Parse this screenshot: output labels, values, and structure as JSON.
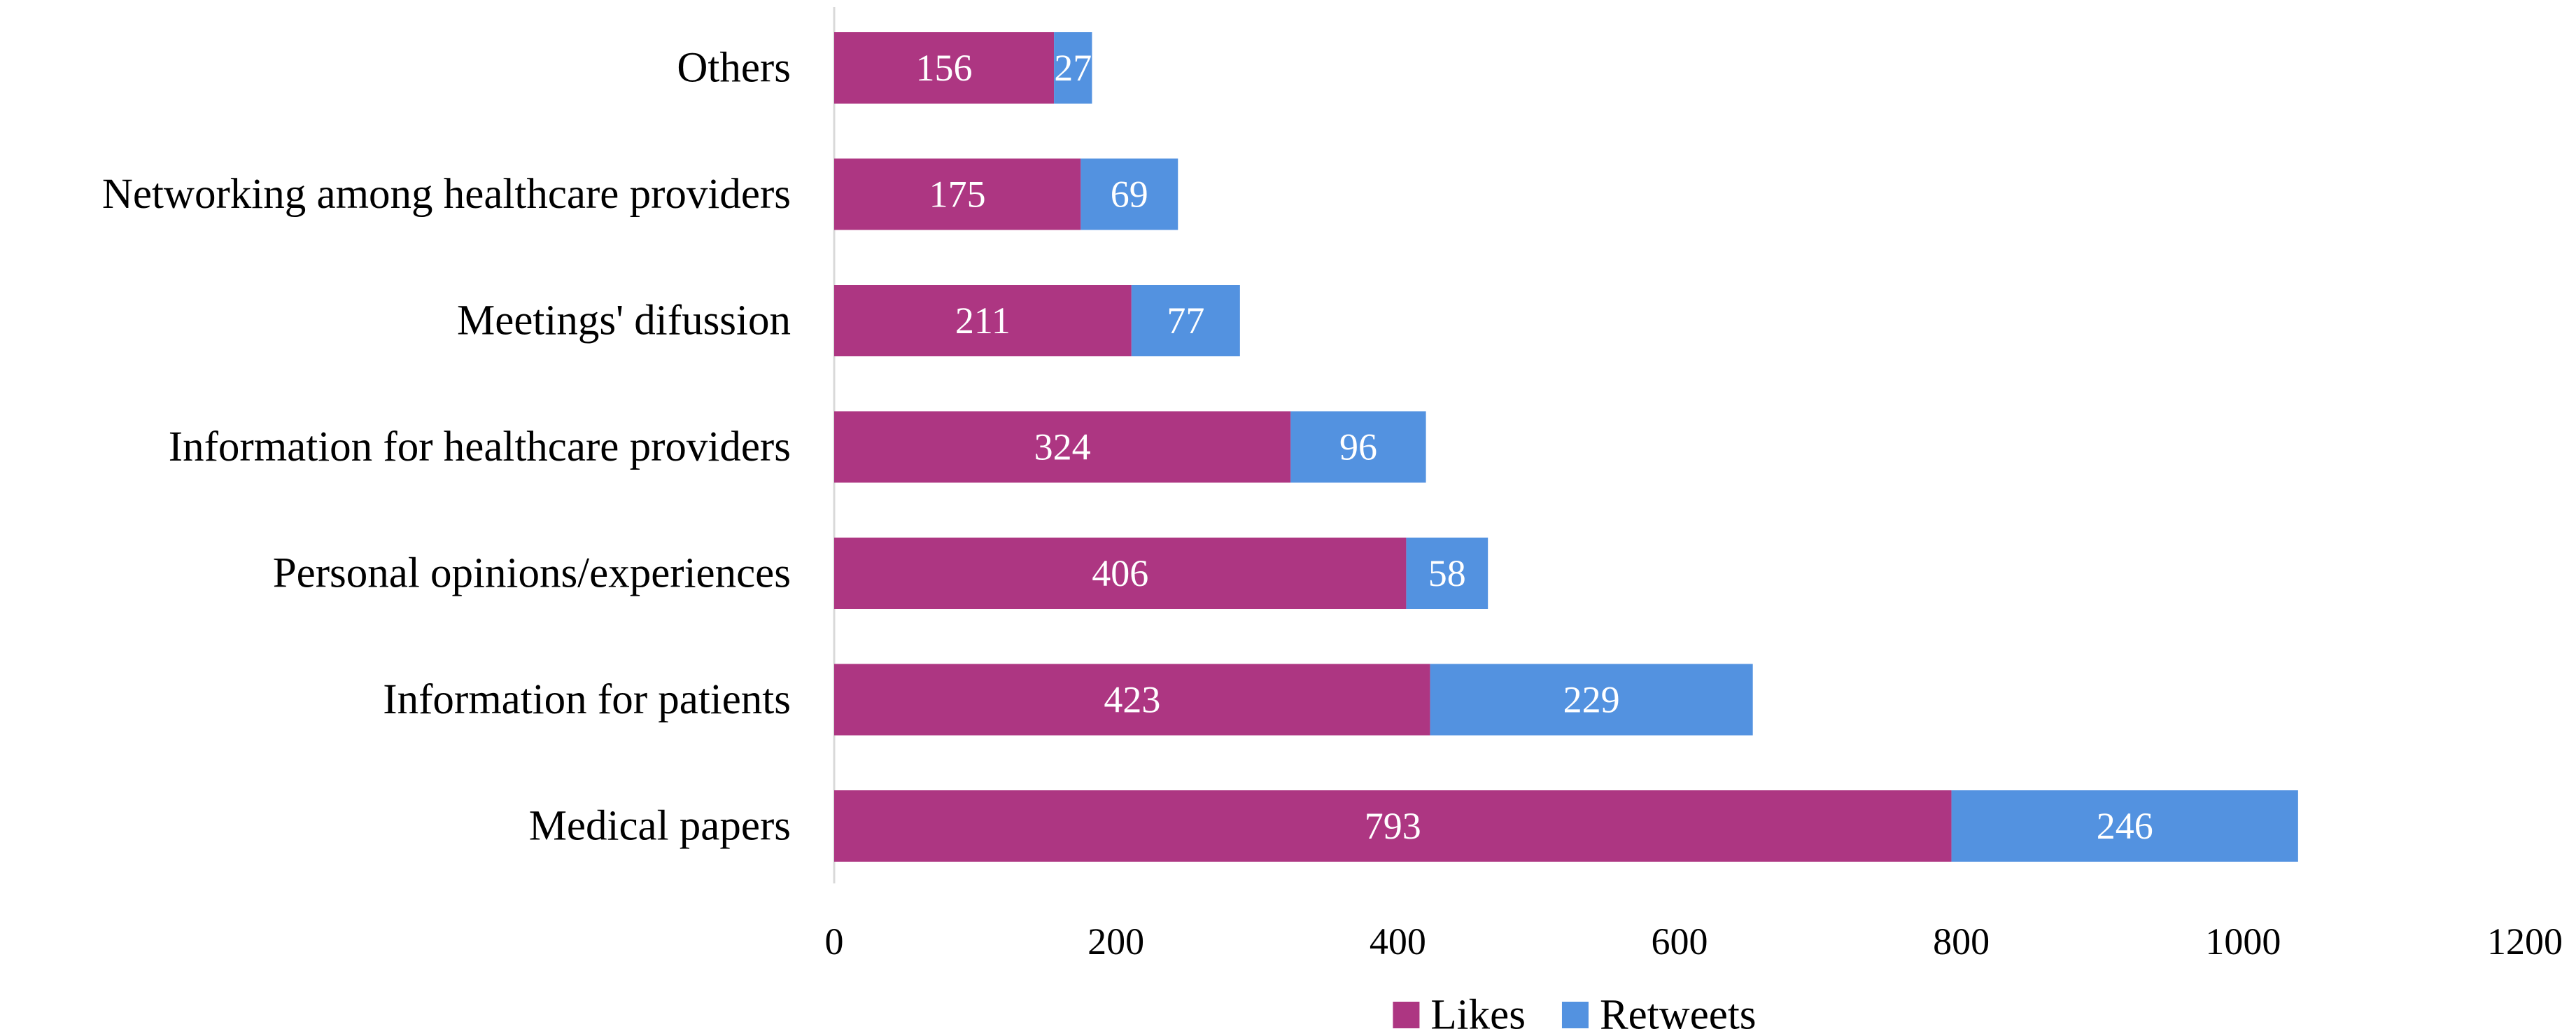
{
  "chart_data": {
    "type": "bar",
    "orientation": "horizontal",
    "stacked": true,
    "categories": [
      "Others",
      "Networking among healthcare providers",
      "Meetings' difussion",
      "Information for healthcare providers",
      "Personal opinions/experiences",
      "Information for patients",
      "Medical papers"
    ],
    "series": [
      {
        "name": "Likes",
        "color": "#AD3682",
        "values": [
          156,
          175,
          211,
          324,
          406,
          423,
          793
        ]
      },
      {
        "name": "Retweets",
        "color": "#5392E0",
        "values": [
          27,
          69,
          77,
          96,
          58,
          229,
          246
        ]
      }
    ],
    "xlim": [
      0,
      1200
    ],
    "xticks": [
      0,
      200,
      400,
      600,
      800,
      1000,
      1200
    ],
    "title": "",
    "xlabel": "",
    "ylabel": "",
    "grid": false,
    "legend_position": "bottom-center"
  }
}
